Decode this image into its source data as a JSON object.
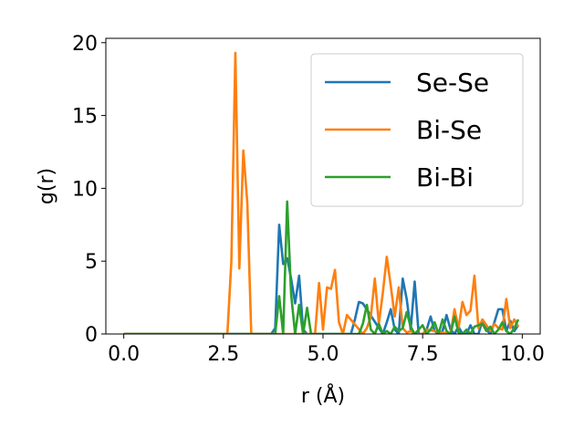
{
  "chart_data": {
    "type": "line",
    "xlabel": "r (Å)",
    "ylabel": "g(r)",
    "xlim": [
      -0.45,
      10.45
    ],
    "ylim": [
      0,
      20.3
    ],
    "xticks": [
      0.0,
      2.5,
      5.0,
      7.5,
      10.0
    ],
    "xtick_labels": [
      "0.0",
      "2.5",
      "5.0",
      "7.5",
      "10.0"
    ],
    "yticks": [
      0,
      5,
      10,
      15,
      20
    ],
    "ytick_labels": [
      "0",
      "5",
      "10",
      "15",
      "20"
    ],
    "grid": false,
    "legend_position": "top-right",
    "series": [
      {
        "name": "Se-Se",
        "color": "#1f77b4",
        "x": [
          0.0,
          3.7,
          3.8,
          3.9,
          4.0,
          4.1,
          4.2,
          4.3,
          4.4,
          4.5,
          4.6,
          5.7,
          5.8,
          5.9,
          6.0,
          6.5,
          6.6,
          6.7,
          6.8,
          6.9,
          7.0,
          7.1,
          7.2,
          7.3,
          7.4,
          7.5,
          7.6,
          7.7,
          7.8,
          7.9,
          8.0,
          8.1,
          8.2,
          8.3,
          8.4,
          8.5,
          8.6,
          8.7,
          8.8,
          8.9,
          9.0,
          9.1,
          9.2,
          9.3,
          9.4,
          9.5,
          9.6,
          9.7,
          9.8,
          9.9
        ],
        "y": [
          0,
          0,
          0.4,
          7.5,
          4.8,
          5.2,
          3.8,
          2.1,
          4.0,
          0.3,
          0,
          0,
          1.0,
          2.2,
          2.1,
          0,
          0.8,
          1.7,
          0.3,
          0,
          3.8,
          2.4,
          0.3,
          3.6,
          0,
          0,
          0.3,
          1.2,
          0.2,
          0,
          0.2,
          1.3,
          0.3,
          0,
          0.5,
          0,
          0,
          0.6,
          0,
          0,
          0.9,
          0.3,
          0,
          0.8,
          1.7,
          1.7,
          0.2,
          0.9,
          0.2,
          0.6
        ]
      },
      {
        "name": "Bi-Se",
        "color": "#ff7f0e",
        "x": [
          0.0,
          2.6,
          2.7,
          2.8,
          2.9,
          3.0,
          3.1,
          3.2,
          4.8,
          4.9,
          5.0,
          5.1,
          5.2,
          5.3,
          5.4,
          5.5,
          5.6,
          6.0,
          6.1,
          6.2,
          6.3,
          6.4,
          6.5,
          6.6,
          6.7,
          6.8,
          6.9,
          7.0,
          7.1,
          7.2,
          7.3,
          7.5,
          7.6,
          8.2,
          8.3,
          8.4,
          8.5,
          8.6,
          8.7,
          8.8,
          8.9,
          9.0,
          9.1,
          9.2,
          9.3,
          9.4,
          9.5,
          9.6,
          9.7,
          9.8,
          9.9
        ],
        "y": [
          0,
          0,
          5.0,
          19.3,
          4.5,
          12.6,
          9.0,
          0,
          0,
          3.5,
          0.3,
          3.2,
          3.1,
          4.4,
          0.8,
          0,
          1.3,
          0,
          0.4,
          1.2,
          3.8,
          0.7,
          2.8,
          5.3,
          3.3,
          1.2,
          3.2,
          0.4,
          0.1,
          0.2,
          0,
          0,
          0.3,
          0,
          1.7,
          0.4,
          2.2,
          1.3,
          1.6,
          4.0,
          0.4,
          1.0,
          0.6,
          0.2,
          0.7,
          0.4,
          0.3,
          2.4,
          0.4,
          1.0,
          0.5
        ]
      },
      {
        "name": "Bi-Bi",
        "color": "#2ca02c",
        "x": [
          0.0,
          3.8,
          3.9,
          4.0,
          4.1,
          4.2,
          4.3,
          4.4,
          4.5,
          4.6,
          4.7,
          5.9,
          6.0,
          6.1,
          6.2,
          6.3,
          6.4,
          6.5,
          6.6,
          6.7,
          6.8,
          6.9,
          7.0,
          7.1,
          7.2,
          7.3,
          7.4,
          7.5,
          7.6,
          7.7,
          7.8,
          7.9,
          8.0,
          8.1,
          8.2,
          8.3,
          8.4,
          8.5,
          8.6,
          8.7,
          8.8,
          8.9,
          9.0,
          9.1,
          9.2,
          9.3,
          9.4,
          9.5,
          9.6,
          9.7,
          9.8,
          9.9
        ],
        "y": [
          0,
          0,
          2.6,
          0,
          9.1,
          2.7,
          0,
          2.0,
          0,
          1.8,
          0,
          0,
          0.7,
          2.0,
          0.3,
          0,
          0.7,
          0,
          0.2,
          0,
          0.5,
          0.2,
          0.4,
          1.5,
          0.5,
          0,
          0.3,
          0.6,
          0,
          0.3,
          0.8,
          0,
          1.0,
          0.2,
          0,
          1.2,
          0.1,
          0,
          0.3,
          0,
          0.5,
          0.6,
          0.7,
          0.2,
          0.5,
          0,
          0.3,
          0.8,
          0.2,
          0,
          0.4,
          1.0
        ]
      }
    ]
  }
}
